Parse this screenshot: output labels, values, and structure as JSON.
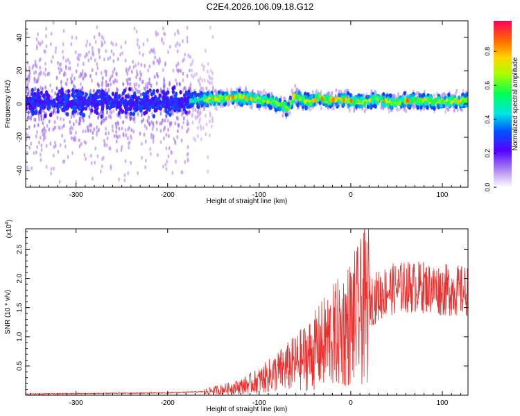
{
  "title": "C2E4.2026.106.09.18.G12",
  "colors": {
    "snr_line": "#e8312f",
    "frame": "#000000"
  },
  "chart_data": [
    {
      "type": "heatmap",
      "xlabel": "Height of straight line (km)",
      "ylabel": "Frequency (Hz)",
      "xlim": [
        -355,
        128
      ],
      "ylim": [
        -50,
        50
      ],
      "xticks": [
        -300,
        -200,
        -100,
        0,
        100
      ],
      "yticks": [
        -40,
        -20,
        0,
        20,
        40
      ],
      "colorbar": {
        "label": "Normalized spectral amplitude",
        "range": [
          0,
          1
        ],
        "ticks": [
          "0.0",
          "0.2",
          "0.4",
          "0.6",
          "0.8"
        ]
      },
      "ridge": {
        "x": [
          -355,
          -300,
          -250,
          -200,
          -175,
          -150,
          -130,
          -110,
          -90,
          -75,
          -68,
          -62,
          -55,
          -45,
          -35,
          -25,
          -15,
          0,
          15,
          25,
          35,
          45,
          60,
          80,
          100,
          128
        ],
        "y": [
          1,
          1,
          0.5,
          1,
          2,
          3,
          4,
          3.5,
          2,
          -1,
          -3,
          5,
          3,
          1,
          4,
          2,
          3,
          2,
          1,
          3,
          2,
          1,
          2,
          2,
          1.5,
          2
        ]
      }
    },
    {
      "type": "line",
      "xlabel": "Height of straight line (km)",
      "ylabel": "SNR (10 * v/v)",
      "yscale_label": "(x10",
      "yscale_exp": "4",
      "xlim": [
        -355,
        128
      ],
      "ylim": [
        0,
        2.85
      ],
      "xticks": [
        -300,
        -200,
        -100,
        0,
        100
      ],
      "yticks": [
        "0.5",
        "1.0",
        "1.5",
        "2.0",
        "2.5"
      ],
      "trend": {
        "x": [
          -355,
          -200,
          -160,
          -140,
          -120,
          -100,
          -80,
          -60,
          -40,
          -25,
          -10,
          0,
          10,
          20,
          30,
          40,
          60,
          80,
          100,
          110,
          120,
          128
        ],
        "y": [
          0.02,
          0.04,
          0.06,
          0.1,
          0.15,
          0.25,
          0.4,
          0.55,
          0.75,
          0.95,
          1.1,
          1.25,
          1.4,
          1.6,
          1.7,
          1.8,
          1.85,
          1.85,
          1.8,
          1.8,
          1.78,
          1.78
        ]
      }
    }
  ]
}
